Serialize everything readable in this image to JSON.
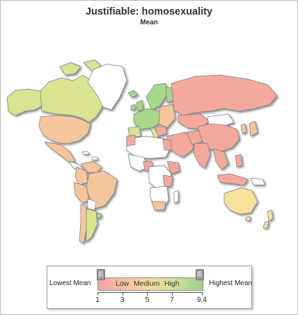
{
  "header": {
    "title": "Justifiable: homosexuality",
    "subtitle": "Mean"
  },
  "map": {
    "colors": {
      "low": "#f5a99c",
      "low_medium": "#f7c59b",
      "medium": "#f5e19a",
      "medium_high": "#d9e390",
      "high": "#a9d789",
      "no_data": "#ffffff",
      "border": "#6f7c86"
    }
  },
  "legend": {
    "lowest_label": "Lowest Mean",
    "highest_label": "Highest Mean",
    "band_labels": [
      "Low",
      "Medium",
      "High"
    ],
    "ticks": [
      "1",
      "3",
      "5",
      "7",
      "9.4"
    ],
    "range": {
      "min": 1,
      "max": 9.4
    }
  }
}
